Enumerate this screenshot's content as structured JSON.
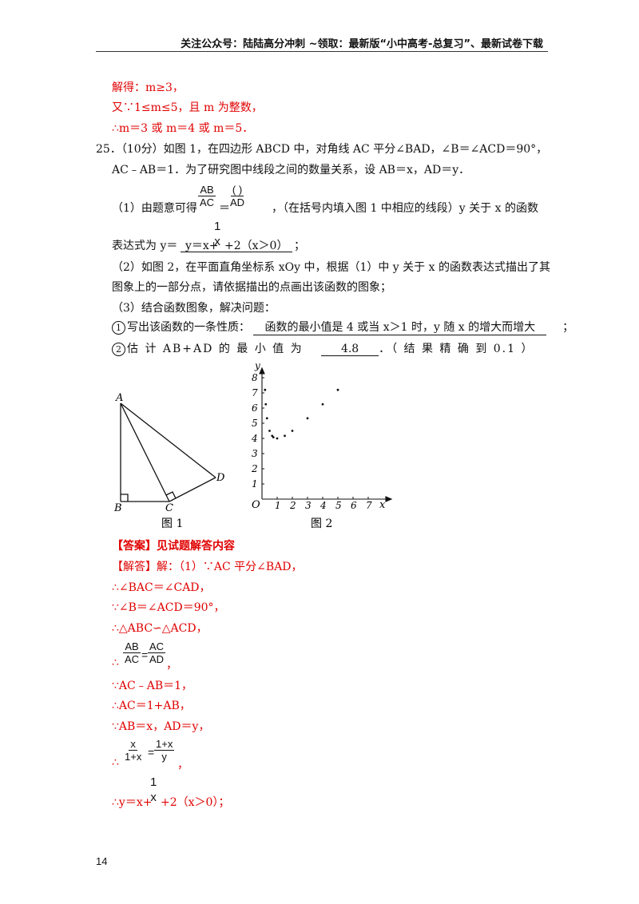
{
  "header": {
    "text": "关注公众号：陆陆高分冲刺 ~领取：最新版“小中高考-总复习”、最新试卷下载"
  },
  "prev": {
    "line1": "解得：m≥3，",
    "line2": "又∵1≤m≤5，且 m 为整数，",
    "line3": "∴m＝3 或 m＝4 或 m＝5．"
  },
  "q25": {
    "intro1": "25．（10分）如图 1，在四边形 ABCD 中，对角线 AC 平分∠BAD，∠B＝∠ACD＝90°，",
    "intro2": "AC﹣AB＝1．为了研究图中线段之间的数量关系，设 AB＝x，AD＝y．",
    "p1_prefix": "（1）由题意可得",
    "frac1_num": "AB",
    "frac1_den": "AC",
    "eq": "＝",
    "frac2_num": "(        )",
    "frac2_den": "AD",
    "p1_suffix": "，（在括号内填入图 1 中相应的线段）y 关于 x 的函数",
    "expr_prefix": "表达式为 y＝",
    "expr_answer_a": "y＝x+",
    "expr_frac_num": "1",
    "expr_frac_den": "x",
    "expr_answer_b": "+2（x＞0）",
    "expr_end": "；",
    "p2_line1": "（2）如图 2，在平面直角坐标系 xOy 中，根据（1）中 y 关于 x 的函数表达式描出了其",
    "p2_line2": "图象上的一部分点，请依据描出的点画出该函数的图象；",
    "p3": "（3）结合函数图象，解决问题：",
    "c1_num": "1",
    "c1_prefix": "写出该函数的一条性质：",
    "c1_answer": "函数的最小值是 4 或当 x＞1 时，y 随 x 的增大而增大",
    "c1_end": "；",
    "c2_num": "2",
    "c2_prefix": "估 计 AB+AD 的 最 小 值 为",
    "c2_answer": "4.8",
    "c2_suffix": "．（ 结 果 精 确 到 0.1 ）"
  },
  "fig1": {
    "caption": "图 1",
    "labels": {
      "A": "A",
      "B": "B",
      "C": "C",
      "D": "D"
    }
  },
  "fig2": {
    "caption": "图 2",
    "origin": "O",
    "xlabel": "x",
    "ylabel": "y",
    "xticks": [
      "1",
      "2",
      "3",
      "4",
      "5",
      "6",
      "7"
    ],
    "yticks": [
      "1",
      "2",
      "3",
      "4",
      "5",
      "6",
      "7",
      "8"
    ]
  },
  "chart_data": {
    "type": "scatter",
    "title": "",
    "xlabel": "x",
    "ylabel": "y",
    "xlim": [
      0,
      8
    ],
    "ylim": [
      0,
      8
    ],
    "points": [
      {
        "x": 0.2,
        "y": 7.2
      },
      {
        "x": 0.25,
        "y": 6.25
      },
      {
        "x": 0.33,
        "y": 5.33
      },
      {
        "x": 0.5,
        "y": 4.5
      },
      {
        "x": 0.67,
        "y": 4.17
      },
      {
        "x": 0.75,
        "y": 4.08
      },
      {
        "x": 1,
        "y": 4
      },
      {
        "x": 1.5,
        "y": 4.17
      },
      {
        "x": 2,
        "y": 4.5
      },
      {
        "x": 3,
        "y": 5.33
      },
      {
        "x": 4,
        "y": 6.25
      },
      {
        "x": 5,
        "y": 7.2
      }
    ]
  },
  "answer": {
    "title": "【答案】见试题解答内容",
    "sol_label": "【解答】解：（1）∵AC 平分∠BAD，",
    "l2": "∴∠BAC＝∠CAD，",
    "l3": "∵∠B＝∠ACD＝90°，",
    "l4": "∴△ABC∽△ACD，",
    "f5a_num": "AB",
    "f5a_den": "AC",
    "f5b_num": "AC",
    "f5b_den": "AD",
    "l5": "∴",
    "l5_end": "，",
    "l6": "∵AC﹣AB＝1，",
    "l7": "∴AC＝1+AB，",
    "l8": "∵AB＝x，AD＝y，",
    "f9a_num": "x",
    "f9a_den": "1+x",
    "f9b_num": "1+x",
    "f9b_den": "y",
    "l9": "∴",
    "l9_end": "，",
    "f10_num": "1",
    "f10_den": "x",
    "l10a": "∴y＝x+",
    "l10b": "+2（x＞0）；"
  },
  "page_number": "14"
}
